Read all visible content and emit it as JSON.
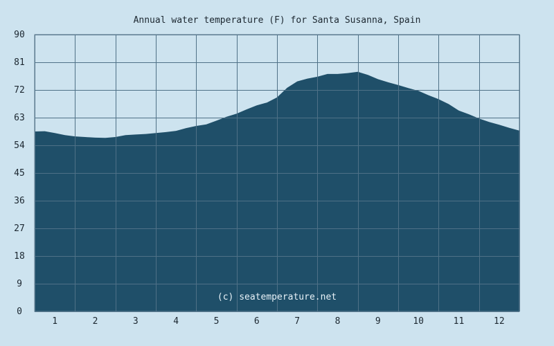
{
  "chart_data": {
    "type": "area",
    "title": "Annual water temperature (F) for Santa Susanna, Spain",
    "watermark": "(c) seatemperature.net",
    "xlabel": "",
    "ylabel": "",
    "x_tick_labels": [
      "1",
      "2",
      "3",
      "4",
      "5",
      "6",
      "7",
      "8",
      "9",
      "10",
      "11",
      "12"
    ],
    "y_ticks": [
      0,
      9,
      18,
      27,
      36,
      45,
      54,
      63,
      72,
      81,
      90
    ],
    "ylim": [
      0,
      90
    ],
    "xlim": [
      0.5,
      12.5
    ],
    "grid": true,
    "colors": {
      "background": "#cde3ef",
      "plot_background": "#cde3ef",
      "fill": "#1f4f69",
      "grid": "#5f7d92",
      "text": "#1c2730"
    },
    "series": [
      {
        "x": [
          0.5,
          0.75,
          1.0,
          1.25,
          1.5,
          1.75,
          2.0,
          2.25,
          2.5,
          2.75,
          3.0,
          3.25,
          3.5,
          3.75,
          4.0,
          4.25,
          4.5,
          4.75,
          5.0,
          5.25,
          5.5,
          5.75,
          6.0,
          6.25,
          6.5,
          6.75,
          7.0,
          7.25,
          7.5,
          7.75,
          8.0,
          8.25,
          8.5,
          8.75,
          9.0,
          9.25,
          9.5,
          9.75,
          10.0,
          10.25,
          10.5,
          10.75,
          11.0,
          11.25,
          11.5,
          11.75,
          12.0,
          12.25,
          12.5
        ],
        "values": [
          58.5,
          58.6,
          58.0,
          57.3,
          56.9,
          56.7,
          56.5,
          56.4,
          56.7,
          57.3,
          57.5,
          57.7,
          58.0,
          58.3,
          58.7,
          59.6,
          60.3,
          60.8,
          62.0,
          63.3,
          64.3,
          65.7,
          67.0,
          67.9,
          69.6,
          72.7,
          74.8,
          75.7,
          76.3,
          77.2,
          77.2,
          77.5,
          77.9,
          76.9,
          75.5,
          74.5,
          73.6,
          72.6,
          71.7,
          70.3,
          69.0,
          67.4,
          65.3,
          64.1,
          62.7,
          61.6,
          60.7,
          59.7,
          58.8
        ]
      }
    ]
  }
}
